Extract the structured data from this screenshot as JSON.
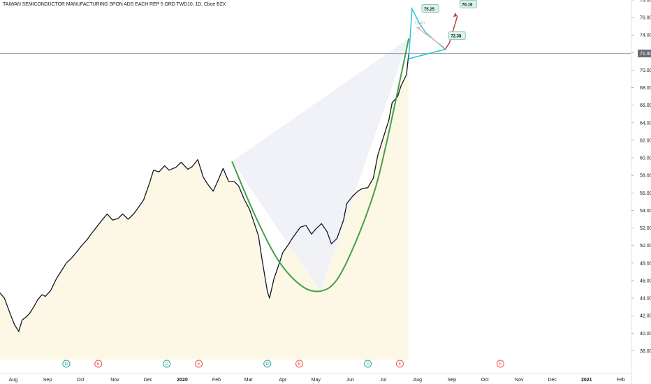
{
  "title": "TAIWAN SEMICONDUCTOR MANUFACTURING SPON ADS EACH REP 5 ORD TWD10, 1D, Cboe BZX",
  "colors": {
    "price_line": "#131722",
    "cup_curve": "#43a047",
    "fill_area": "#fdf8e6",
    "fill_triangle": "#eef1f7",
    "projection": "#26c6da",
    "arrow_up": "#b7473f",
    "arrow_pink": "#f2b6b6",
    "dividend_badge": "#26a69a",
    "earnings_badge": "#ef5350",
    "last_price_line": "#9598a1"
  },
  "annotations": {
    "last_price": "71.90",
    "target_high": "76.16",
    "proj_high": "75.25",
    "proj_low": "72.38",
    "proj_mid": "73.40"
  },
  "events": [
    {
      "type": "D",
      "date": "2019-09-18"
    },
    {
      "type": "E",
      "date": "2019-10-17"
    },
    {
      "type": "D",
      "date": "2019-12-18"
    },
    {
      "type": "E",
      "date": "2020-01-16"
    },
    {
      "type": "D",
      "date": "2020-03-18"
    },
    {
      "type": "E",
      "date": "2020-04-16"
    },
    {
      "type": "D",
      "date": "2020-06-17"
    },
    {
      "type": "E",
      "date": "2020-07-16"
    },
    {
      "type": "E",
      "date": "2020-10-15"
    }
  ],
  "chart_data": {
    "type": "line",
    "title": "TAIWAN SEMICONDUCTOR MANUFACTURING SPON ADS EACH REP 5 ORD TWD10, 1D, Cboe BZX",
    "xlabel": "",
    "ylabel": "",
    "ylim": [
      37,
      78
    ],
    "xlim": [
      "2019-07-20",
      "2021-02-10"
    ],
    "x_ticks": [
      "Aug",
      "Sep",
      "Oct",
      "Nov",
      "Dec",
      "2020",
      "Feb",
      "Mar",
      "Apr",
      "May",
      "Jun",
      "Jul",
      "Aug",
      "Sep",
      "Oct",
      "Nov",
      "Dec",
      "2021",
      "Feb"
    ],
    "x_tick_dates": [
      "2019-08-01",
      "2019-09-01",
      "2019-10-01",
      "2019-11-01",
      "2019-12-01",
      "2020-01-01",
      "2020-02-01",
      "2020-03-01",
      "2020-04-01",
      "2020-05-01",
      "2020-06-01",
      "2020-07-01",
      "2020-08-01",
      "2020-09-01",
      "2020-10-01",
      "2020-11-01",
      "2020-12-01",
      "2021-01-01",
      "2021-02-01"
    ],
    "y_ticks": [
      "38.00",
      "40.00",
      "42.00",
      "44.00",
      "46.00",
      "48.00",
      "50.00",
      "52.00",
      "54.00",
      "56.00",
      "58.00",
      "60.00",
      "62.00",
      "64.00",
      "66.00",
      "68.00",
      "70.00",
      "72.00",
      "74.00",
      "76.00",
      "78.00"
    ],
    "grid": false,
    "series": [
      {
        "x": [
          "2019-07-20",
          "2019-07-24",
          "2019-07-29",
          "2019-08-02",
          "2019-08-06",
          "2019-08-09",
          "2019-08-13",
          "2019-08-16",
          "2019-08-20",
          "2019-08-23",
          "2019-08-27",
          "2019-08-30",
          "2019-09-04",
          "2019-09-09",
          "2019-09-13",
          "2019-09-18",
          "2019-09-23",
          "2019-09-27",
          "2019-10-02",
          "2019-10-07",
          "2019-10-11",
          "2019-10-16",
          "2019-10-21",
          "2019-10-25",
          "2019-10-30",
          "2019-11-04",
          "2019-11-08",
          "2019-11-13",
          "2019-11-18",
          "2019-11-22",
          "2019-11-27",
          "2019-12-02",
          "2019-12-06",
          "2019-12-11",
          "2019-12-16",
          "2019-12-20",
          "2019-12-26",
          "2019-12-31",
          "2020-01-06",
          "2020-01-10",
          "2020-01-15",
          "2020-01-20",
          "2020-01-24",
          "2020-01-29",
          "2020-02-03",
          "2020-02-07",
          "2020-02-12",
          "2020-02-17",
          "2020-02-21",
          "2020-02-26",
          "2020-03-02",
          "2020-03-06",
          "2020-03-10",
          "2020-03-13",
          "2020-03-16",
          "2020-03-18",
          "2020-03-20",
          "2020-03-24",
          "2020-03-27",
          "2020-04-01",
          "2020-04-06",
          "2020-04-09",
          "2020-04-14",
          "2020-04-17",
          "2020-04-22",
          "2020-04-27",
          "2020-05-01",
          "2020-05-06",
          "2020-05-11",
          "2020-05-15",
          "2020-05-20",
          "2020-05-26",
          "2020-05-29",
          "2020-06-03",
          "2020-06-08",
          "2020-06-12",
          "2020-06-17",
          "2020-06-22",
          "2020-06-26",
          "2020-07-01",
          "2020-07-06",
          "2020-07-09",
          "2020-07-14",
          "2020-07-17",
          "2020-07-22",
          "2020-07-24"
        ],
        "values": [
          44.6,
          44.0,
          42.3,
          41.0,
          40.2,
          41.5,
          41.9,
          42.3,
          43.1,
          43.8,
          44.4,
          44.2,
          44.9,
          46.2,
          47.0,
          48.0,
          48.6,
          49.2,
          50.0,
          50.7,
          51.4,
          52.2,
          53.0,
          53.6,
          52.9,
          53.1,
          53.6,
          53.0,
          53.6,
          54.3,
          55.2,
          57.0,
          58.6,
          58.4,
          59.1,
          58.6,
          58.9,
          59.5,
          58.7,
          59.0,
          59.8,
          57.8,
          57.0,
          56.2,
          57.6,
          58.8,
          57.3,
          57.3,
          56.8,
          55.3,
          54.1,
          52.6,
          51.1,
          48.6,
          46.3,
          44.8,
          44.0,
          46.2,
          47.3,
          49.2,
          50.1,
          50.7,
          51.6,
          52.1,
          52.3,
          51.3,
          51.9,
          52.5,
          51.6,
          50.2,
          50.8,
          52.9,
          54.8,
          55.6,
          56.2,
          56.5,
          56.6,
          57.7,
          60.3,
          62.3,
          64.3,
          66.3,
          67.0,
          68.2,
          69.5,
          71.9
        ]
      }
    ],
    "cup_curve": {
      "x": [
        "2020-02-15",
        "2020-03-07",
        "2020-03-28",
        "2020-04-18",
        "2020-05-05",
        "2020-05-20",
        "2020-06-06",
        "2020-06-23",
        "2020-07-03",
        "2020-07-13",
        "2020-07-24"
      ],
      "values": [
        59.6,
        53.4,
        48.3,
        45.4,
        44.8,
        46.1,
        50.4,
        56.2,
        61.2,
        67.0,
        73.6
      ]
    },
    "projection": {
      "x": [
        "2020-07-24",
        "2020-07-27",
        "2020-08-03",
        "2020-08-09",
        "2020-08-26",
        "2020-07-24"
      ],
      "values": [
        71.3,
        77.0,
        75.25,
        74.2,
        72.38,
        71.3
      ]
    },
    "target_arrow": {
      "x": [
        "2020-08-26",
        "2020-09-01"
      ],
      "values": [
        72.38,
        76.16
      ]
    }
  }
}
